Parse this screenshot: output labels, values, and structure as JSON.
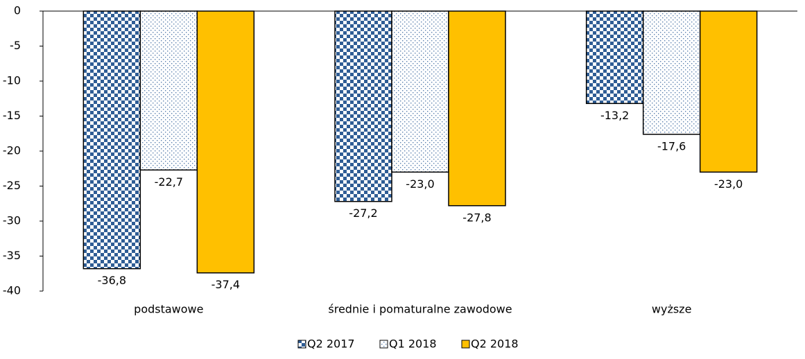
{
  "chart_data": {
    "type": "bar",
    "categories": [
      "podstawowe",
      "średnie i pomaturalne zawodowe",
      "wyższe"
    ],
    "series": [
      {
        "name": "Q2 2017",
        "color": "#2f5d95",
        "values": [
          -36.8,
          -27.2,
          -13.2
        ],
        "value_labels": [
          "-36,8",
          "-27,2",
          "-13,2"
        ]
      },
      {
        "name": "Q1 2018",
        "color": "#8fa9c9",
        "values": [
          -22.7,
          -23.0,
          -17.6
        ],
        "value_labels": [
          "-22,7",
          "-23,0",
          "-17,6"
        ]
      },
      {
        "name": "Q2 2018",
        "color": "#ffc000",
        "values": [
          -37.4,
          -27.8,
          -23.0
        ],
        "value_labels": [
          "-37,4",
          "-27,8",
          "-23,0"
        ]
      }
    ],
    "ylim": [
      -40,
      0
    ],
    "yticks": [
      0,
      -5,
      -10,
      -15,
      -20,
      -25,
      -30,
      -35,
      -40
    ]
  }
}
